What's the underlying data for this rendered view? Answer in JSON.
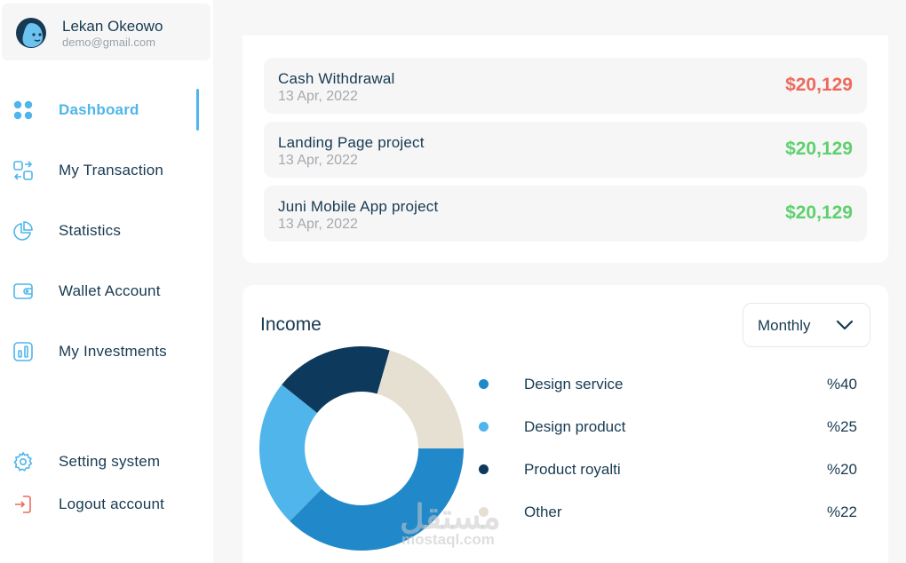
{
  "profile": {
    "name": "Lekan Okeowo",
    "email": "demo@gmail.com"
  },
  "nav": {
    "dashboard": "Dashboard",
    "transaction": "My Transaction",
    "statistics": "Statistics",
    "wallet": "Wallet Account",
    "investments": "My Investments",
    "settings": "Setting system",
    "logout": "Logout account"
  },
  "transactions": [
    {
      "title": "Cash Withdrawal",
      "date": "13 Apr, 2022",
      "amount": "$20,129",
      "status": "negative"
    },
    {
      "title": "Landing Page project",
      "date": "13 Apr, 2022",
      "amount": "$20,129",
      "status": "positive"
    },
    {
      "title": "Juni Mobile App project",
      "date": "13 Apr, 2022",
      "amount": "$20,129",
      "status": "positive"
    }
  ],
  "income": {
    "title": "Income",
    "period": "Monthly",
    "legend": [
      {
        "label": "Design service",
        "value": "%40",
        "color": "#2189c9"
      },
      {
        "label": "Design product",
        "value": "%25",
        "color": "#4fb5ea"
      },
      {
        "label": "Product royalti",
        "value": "%20",
        "color": "#0d3a5c"
      },
      {
        "label": "Other",
        "value": "%22",
        "color": "#e5e0d2"
      }
    ]
  },
  "watermark": {
    "main": "مستقل",
    "sub": "mostaql.com"
  },
  "colors": {
    "accent": "#4fb5ea",
    "text": "#173a52",
    "negative": "#ee6a5a",
    "positive": "#5fd06e"
  },
  "chart_data": {
    "type": "pie",
    "categories": [
      "Design service",
      "Design product",
      "Product royalti",
      "Other"
    ],
    "values": [
      40,
      25,
      20,
      22
    ],
    "colors": [
      "#2189c9",
      "#4fb5ea",
      "#0d3a5c",
      "#e5e0d2"
    ]
  }
}
